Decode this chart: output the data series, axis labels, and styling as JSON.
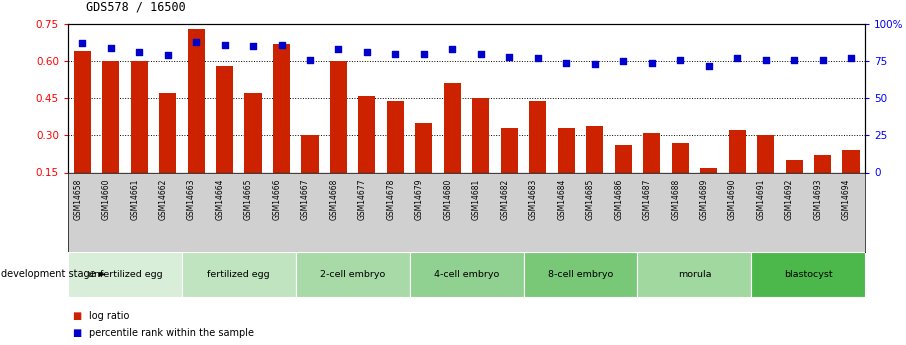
{
  "title": "GDS578 / 16500",
  "samples": [
    "GSM14658",
    "GSM14660",
    "GSM14661",
    "GSM14662",
    "GSM14663",
    "GSM14664",
    "GSM14665",
    "GSM14666",
    "GSM14667",
    "GSM14668",
    "GSM14677",
    "GSM14678",
    "GSM14679",
    "GSM14680",
    "GSM14681",
    "GSM14682",
    "GSM14683",
    "GSM14684",
    "GSM14685",
    "GSM14686",
    "GSM14687",
    "GSM14688",
    "GSM14689",
    "GSM14690",
    "GSM14691",
    "GSM14692",
    "GSM14693",
    "GSM14694"
  ],
  "log_ratio": [
    0.64,
    0.6,
    0.6,
    0.47,
    0.73,
    0.58,
    0.47,
    0.67,
    0.3,
    0.6,
    0.46,
    0.44,
    0.35,
    0.51,
    0.45,
    0.33,
    0.44,
    0.33,
    0.34,
    0.26,
    0.31,
    0.27,
    0.17,
    0.32,
    0.3,
    0.2,
    0.22,
    0.24
  ],
  "percentile": [
    87,
    84,
    81,
    79,
    88,
    86,
    85,
    86,
    76,
    83,
    81,
    80,
    80,
    83,
    80,
    78,
    77,
    74,
    73,
    75,
    74,
    76,
    72,
    77,
    76,
    76,
    76,
    77
  ],
  "stages": [
    {
      "label": "unfertilized egg",
      "start": 0,
      "end": 3,
      "color": "#d8eed8"
    },
    {
      "label": "fertilized egg",
      "start": 4,
      "end": 7,
      "color": "#c0e4c0"
    },
    {
      "label": "2-cell embryo",
      "start": 8,
      "end": 11,
      "color": "#a8daa8"
    },
    {
      "label": "4-cell embryo",
      "start": 12,
      "end": 15,
      "color": "#90d090"
    },
    {
      "label": "8-cell embryo",
      "start": 16,
      "end": 19,
      "color": "#78c878"
    },
    {
      "label": "morula",
      "start": 20,
      "end": 23,
      "color": "#a0d8a0"
    },
    {
      "label": "blastocyst",
      "start": 24,
      "end": 27,
      "color": "#4cb84c"
    }
  ],
  "bar_color": "#cc2200",
  "dot_color": "#0000cc",
  "ylim_left": [
    0.15,
    0.75
  ],
  "ylim_right": [
    0,
    100
  ],
  "yticks_left": [
    0.15,
    0.3,
    0.45,
    0.6,
    0.75
  ],
  "yticks_right": [
    0,
    25,
    50,
    75,
    100
  ],
  "ytick_labels_right": [
    "0",
    "25",
    "50",
    "75",
    "100%"
  ],
  "grid_lines": [
    0.3,
    0.45,
    0.6
  ],
  "label_band_color": "#d0d0d0"
}
